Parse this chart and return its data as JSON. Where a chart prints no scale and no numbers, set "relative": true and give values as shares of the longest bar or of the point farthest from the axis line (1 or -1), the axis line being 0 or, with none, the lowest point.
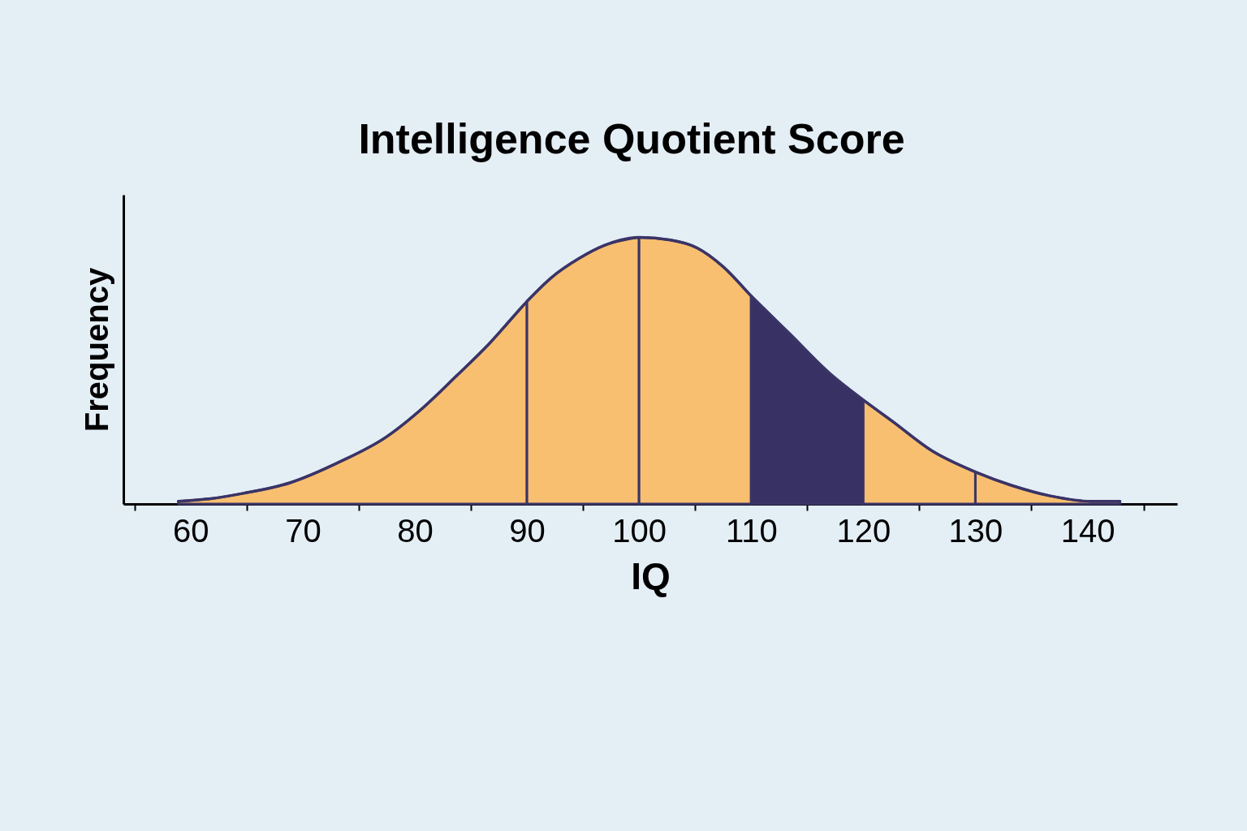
{
  "chart_data": {
    "type": "area",
    "title": "Intelligence Quotient Score",
    "xlabel": "IQ",
    "ylabel": "Frequency",
    "relative": true,
    "xlim": [
      54,
      148
    ],
    "xticks": [
      {
        "value": 55,
        "label": null
      },
      60,
      {
        "value": 65,
        "label": null
      },
      70,
      {
        "value": 75,
        "label": null
      },
      80,
      {
        "value": 85,
        "label": null
      },
      90,
      {
        "value": 95,
        "label": null
      },
      100,
      {
        "value": 105,
        "label": null
      },
      110,
      {
        "value": 115,
        "label": null
      },
      120,
      {
        "value": 125,
        "label": null
      },
      130,
      {
        "value": 135,
        "label": null
      },
      140,
      {
        "value": 145,
        "label": null
      }
    ],
    "series": [
      {
        "color": "#f9bf70",
        "x": [
          58.9,
          61.8,
          64.7,
          68.9,
          73.4,
          77.4,
          80.7,
          83.7,
          86.6,
          90
        ],
        "values": [
          0.01,
          0.02,
          0.04,
          0.08,
          0.16,
          0.25,
          0.36,
          0.48,
          0.6,
          0.76
        ]
      },
      {
        "color": "#f9bf70",
        "x": [
          90,
          92.2,
          94.6,
          96.9,
          100
        ],
        "values": [
          0.76,
          0.85,
          0.92,
          0.97,
          1
        ]
      },
      {
        "color": "#f9bf70",
        "x": [
          100,
          102.8,
          105.2,
          107.5,
          110
        ],
        "values": [
          1,
          0.99,
          0.96,
          0.89,
          0.78
        ]
      },
      {
        "color": "#383163",
        "x": [
          110,
          113.4,
          117,
          120
        ],
        "values": [
          0.78,
          0.64,
          0.49,
          0.39
        ]
      },
      {
        "color": "#f9bf70",
        "x": [
          120,
          122.6,
          126.1,
          130
        ],
        "values": [
          0.39,
          0.31,
          0.2,
          0.12
        ]
      },
      {
        "color": "#f9bf70",
        "x": [
          130,
          133.2,
          136.7,
          140.3,
          142.9
        ],
        "values": [
          0.12,
          0.07,
          0.03,
          0.01,
          0.01
        ]
      },
      {
        "type": "line",
        "color": "#3a3467",
        "x": [
          58.9,
          61.8,
          64.7,
          68.9,
          73.4,
          77.4,
          80.7,
          83.7,
          86.6,
          90,
          92.2,
          94.6,
          96.9,
          100,
          102.8,
          105.2,
          107.5,
          110,
          113.4,
          117,
          120,
          122.6,
          126.1,
          130,
          133.2,
          136.7,
          140.3,
          142.9
        ],
        "values": [
          0.01,
          0.02,
          0.04,
          0.08,
          0.16,
          0.25,
          0.36,
          0.48,
          0.6,
          0.76,
          0.85,
          0.92,
          0.97,
          1,
          0.99,
          0.96,
          0.89,
          0.78,
          0.64,
          0.49,
          0.39,
          0.31,
          0.2,
          0.12,
          0.07,
          0.03,
          0.01,
          0.01
        ]
      }
    ]
  }
}
